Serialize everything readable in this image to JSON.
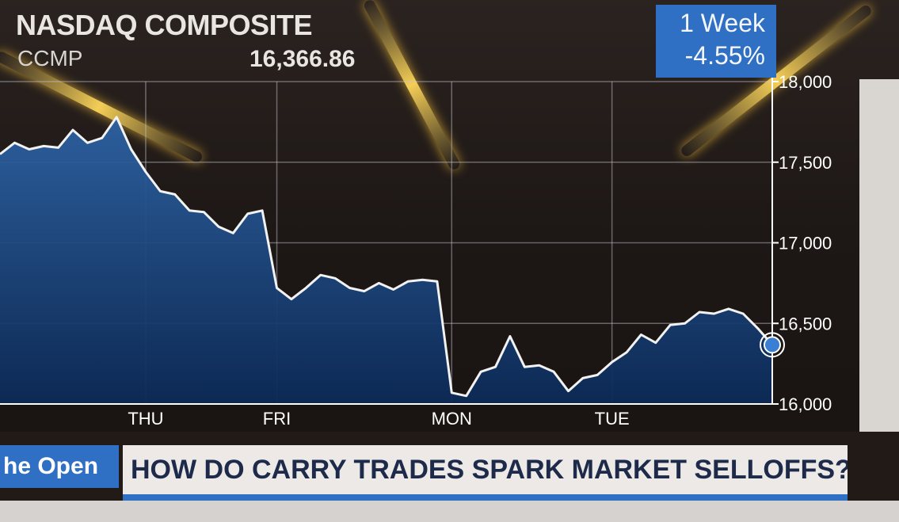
{
  "header": {
    "index_name": "NASDAQ COMPOSITE",
    "ticker": "CCMP",
    "last_price": "16,366.86",
    "period_label": "1 Week",
    "period_change": "-4.55%"
  },
  "lower_third": {
    "show_name": "he Open",
    "headline": "HOW DO CARRY TRADES SPARK MARKET SELLOFFS?"
  },
  "colors": {
    "accent_blue": "#2f6fc4",
    "line": "#f2f2f2",
    "area_top": "#2a5a94",
    "area_bottom": "#0d2a55"
  },
  "chart_data": {
    "type": "area",
    "title": "NASDAQ COMPOSITE",
    "series": [
      {
        "values": [
          17550,
          17620,
          17580,
          17600,
          17590,
          17700,
          17620,
          17650,
          17780,
          17580,
          17440,
          17320,
          17300,
          17200,
          17190,
          17100,
          17060,
          17180,
          17200,
          16720,
          16650,
          16720,
          16800,
          16780,
          16720,
          16700,
          16750,
          16710,
          16760,
          16770,
          16760,
          16070,
          16050,
          16200,
          16230,
          16420,
          16230,
          16240,
          16200,
          16080,
          16160,
          16180,
          16260,
          16320,
          16430,
          16380,
          16490,
          16500,
          16570,
          16560,
          16590,
          16560,
          16470,
          16366.86
        ]
      }
    ],
    "x_day_labels": [
      "THU",
      "FRI",
      "MON",
      "TUE"
    ],
    "x_day_positions": [
      10,
      19,
      31,
      42
    ],
    "y_ticks": [
      "16,000",
      "16,500",
      "17,000",
      "17,500",
      "18,000"
    ],
    "y_tick_values": [
      16000,
      16500,
      17000,
      17500,
      18000
    ],
    "ylim": [
      16000,
      18000
    ],
    "last_value": 16366.86,
    "grid": true
  }
}
